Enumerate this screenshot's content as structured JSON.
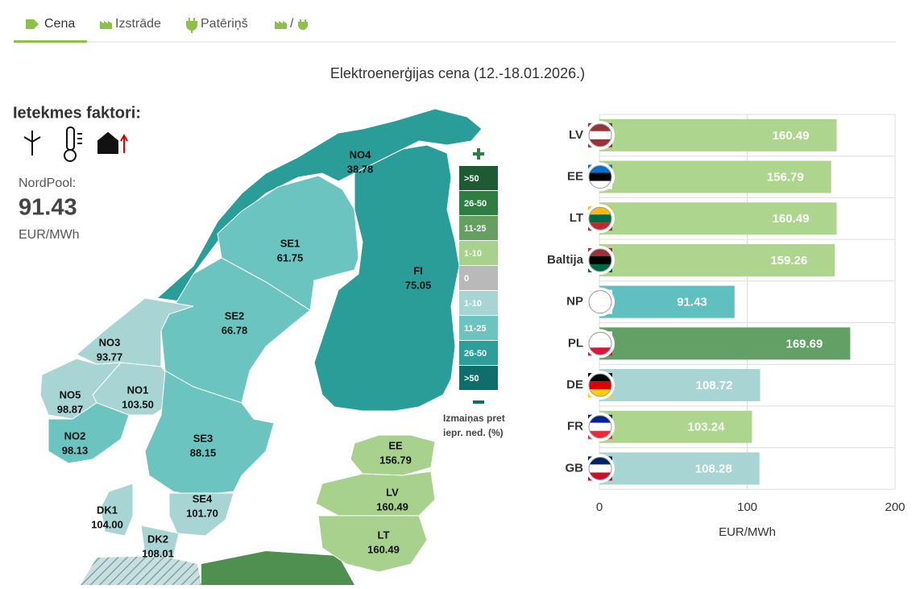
{
  "tabs": [
    "Cena",
    "Izstrāde",
    "Patēriņš",
    "/"
  ],
  "title": "Elektroenerģijas cena (12.-18.01.2026.)",
  "factors": {
    "title": "Ietekmes faktori:"
  },
  "nordpool": {
    "label": "NordPool:",
    "value": "91.43",
    "unit": "EUR/MWh"
  },
  "map": {
    "regions": [
      {
        "name": "NO4",
        "value": "38.78",
        "color": "#2a9d99"
      },
      {
        "name": "SE1",
        "value": "61.75",
        "color": "#6cc4c0"
      },
      {
        "name": "FI",
        "value": "75.05",
        "color": "#2a9d99"
      },
      {
        "name": "SE2",
        "value": "66.78",
        "color": "#6cc4c0"
      },
      {
        "name": "NO3",
        "value": "93.77",
        "color": "#a8d5d3"
      },
      {
        "name": "NO1",
        "value": "103.50",
        "color": "#a8d5d3"
      },
      {
        "name": "NO5",
        "value": "98.87",
        "color": "#a8d5d3"
      },
      {
        "name": "NO2",
        "value": "98.13",
        "color": "#6cc4c0"
      },
      {
        "name": "SE3",
        "value": "88.15",
        "color": "#6cc4c0"
      },
      {
        "name": "SE4",
        "value": "101.70",
        "color": "#a8d5d3"
      },
      {
        "name": "DK1",
        "value": "104.00",
        "color": "#a8d5d3"
      },
      {
        "name": "DK2",
        "value": "108.01",
        "color": "#a8d5d3"
      },
      {
        "name": "EE",
        "value": "156.79",
        "color": "#a8d18d"
      },
      {
        "name": "LV",
        "value": "160.49",
        "color": "#a8d18d"
      },
      {
        "name": "LT",
        "value": "160.49",
        "color": "#a8d18d"
      }
    ],
    "legend": {
      "items": [
        {
          "label": ">50",
          "color": "#1e5a32"
        },
        {
          "label": "26-50",
          "color": "#2e7d43"
        },
        {
          "label": "11-25",
          "color": "#65a061"
        },
        {
          "label": "1-10",
          "color": "#a8d18d"
        },
        {
          "label": "0",
          "color": "#b9b9b9"
        },
        {
          "label": "1-10",
          "color": "#a8d5d3"
        },
        {
          "label": "11-25",
          "color": "#6cc4c0"
        },
        {
          "label": "26-50",
          "color": "#2e9e9a"
        },
        {
          "label": ">50",
          "color": "#0f6e6c"
        }
      ],
      "caption": [
        "Izmaiņas pret",
        "iepr. ned. (%)"
      ]
    }
  },
  "chart_data": {
    "type": "hbar",
    "categories": [
      "LV",
      "EE",
      "LT",
      "Baltija",
      "NP",
      "PL",
      "DE",
      "FR",
      "GB"
    ],
    "values": [
      160.49,
      156.79,
      160.49,
      159.26,
      91.43,
      169.69,
      108.72,
      103.24,
      108.28
    ],
    "colors": [
      "#aed58e",
      "#aed58e",
      "#aed58e",
      "#aed58e",
      "#5fc0bf",
      "#63a065",
      "#a8d4d4",
      "#aed58e",
      "#a8d4d4"
    ],
    "xlim": [
      0,
      200
    ],
    "xticks": [
      0,
      100,
      200
    ],
    "xlabel": "EUR/MWh",
    "grid": true
  }
}
